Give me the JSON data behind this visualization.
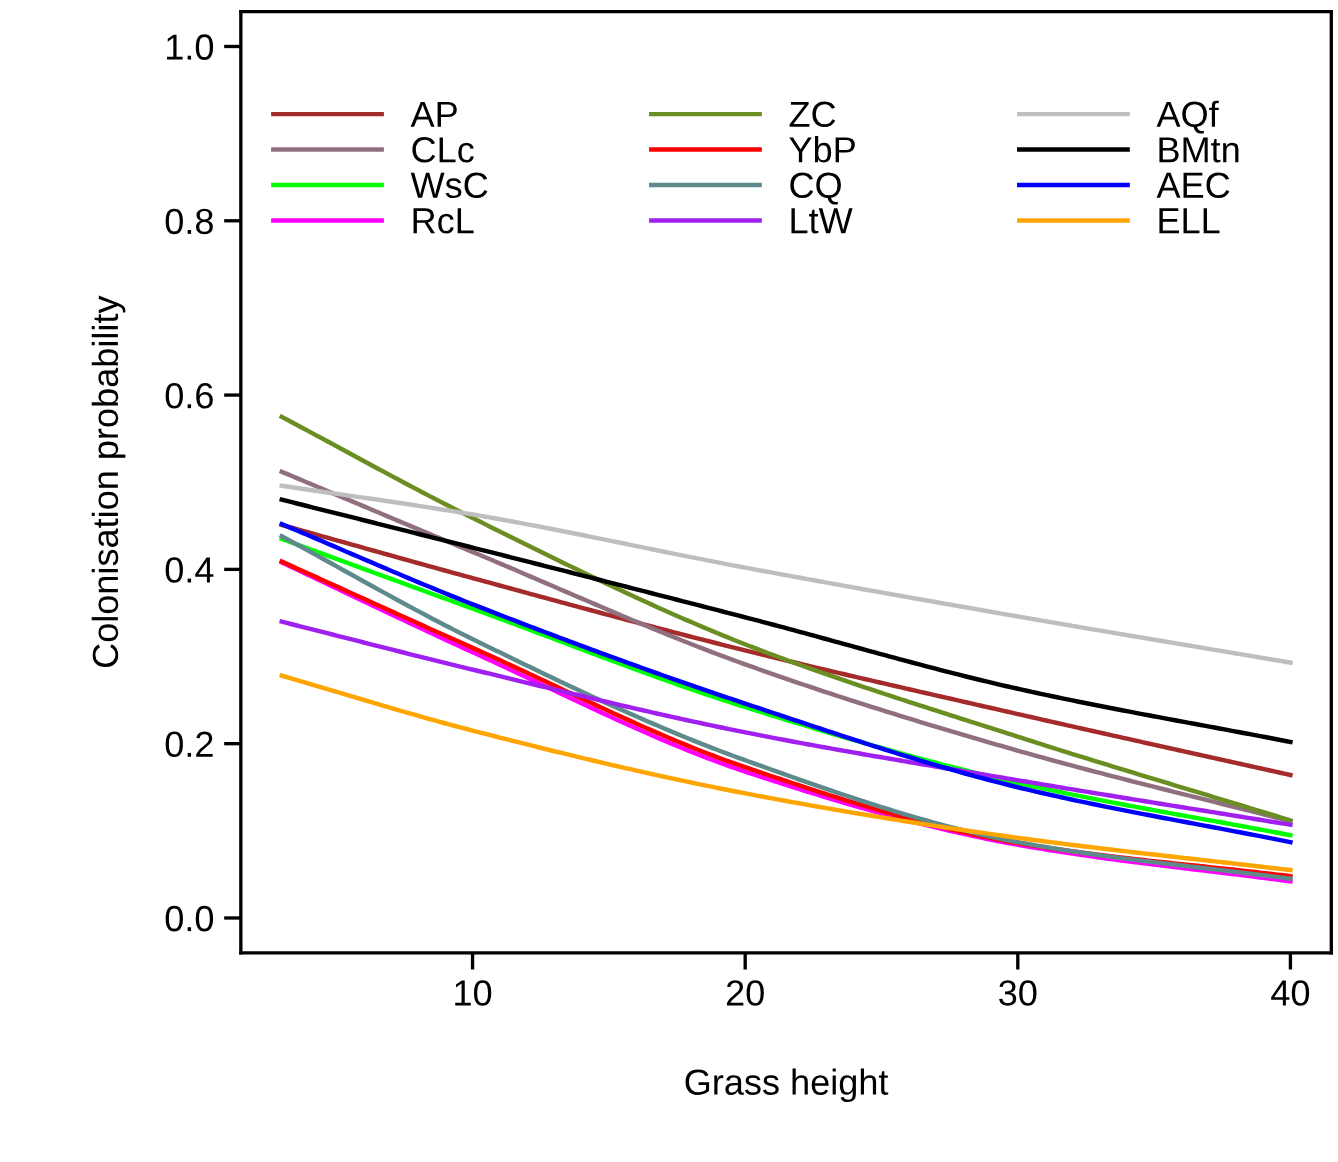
{
  "chart_data": {
    "type": "line",
    "xlabel": "Grass height",
    "ylabel": "Colonisation probability",
    "x": [
      3,
      10,
      20,
      30,
      40
    ],
    "series": [
      {
        "name": "AP",
        "color": "#a52a2a",
        "values": [
          0.451,
          0.39,
          0.307,
          0.234,
          0.164
        ]
      },
      {
        "name": "CLc",
        "color": "#8f6f80",
        "values": [
          0.512,
          0.42,
          0.291,
          0.192,
          0.111
        ]
      },
      {
        "name": "WsC",
        "color": "#00ff00",
        "values": [
          0.435,
          0.355,
          0.242,
          0.155,
          0.095
        ]
      },
      {
        "name": "RcL",
        "color": "#ff00ff",
        "values": [
          0.408,
          0.305,
          0.168,
          0.084,
          0.042
        ]
      },
      {
        "name": "ZC",
        "color": "#6b8e23",
        "values": [
          0.575,
          0.459,
          0.314,
          0.208,
          0.112
        ]
      },
      {
        "name": "YbP",
        "color": "#ff0000",
        "values": [
          0.409,
          0.31,
          0.173,
          0.086,
          0.048
        ]
      },
      {
        "name": "CQ",
        "color": "#5f8a8b",
        "values": [
          0.438,
          0.32,
          0.181,
          0.087,
          0.045
        ]
      },
      {
        "name": "LtW",
        "color": "#a020f0",
        "values": [
          0.34,
          0.285,
          0.213,
          0.158,
          0.107
        ]
      },
      {
        "name": "AQf",
        "color": "#bebebe",
        "values": [
          0.496,
          0.463,
          0.402,
          0.346,
          0.293
        ]
      },
      {
        "name": "BMtn",
        "color": "#000000",
        "values": [
          0.48,
          0.425,
          0.345,
          0.263,
          0.202
        ]
      },
      {
        "name": "AEC",
        "color": "#0000ff",
        "values": [
          0.452,
          0.36,
          0.246,
          0.15,
          0.087
        ]
      },
      {
        "name": "ELL",
        "color": "#ffa500",
        "values": [
          0.278,
          0.215,
          0.143,
          0.092,
          0.055
        ]
      }
    ],
    "xlim": [
      1.5,
      41.5
    ],
    "ylim": [
      -0.04,
      1.04
    ],
    "xticks": [
      10,
      20,
      30,
      40
    ],
    "yticks": [
      {
        "value": 0.0,
        "label": "0.0"
      },
      {
        "value": 0.2,
        "label": "0.2"
      },
      {
        "value": 0.4,
        "label": "0.4"
      },
      {
        "value": 0.6,
        "label": "0.6"
      },
      {
        "value": 0.8,
        "label": "0.8"
      },
      {
        "value": 1.0,
        "label": "1.0"
      }
    ],
    "grid": false,
    "legend": "top left",
    "marker": "none",
    "line_style": "solid"
  }
}
